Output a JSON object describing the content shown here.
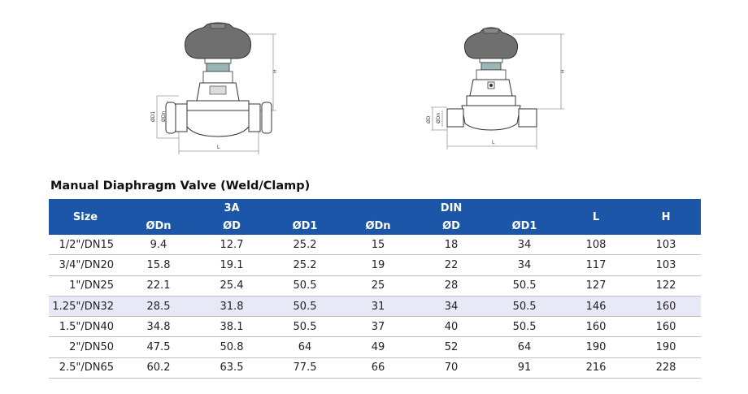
{
  "drawings": {
    "left": {
      "dims": {
        "height": "H",
        "length": "L",
        "d1": "ØD1",
        "dn": "ØDn"
      }
    },
    "right": {
      "dims": {
        "height": "H",
        "length": "L",
        "d": "ØD",
        "dn": "ØDn"
      }
    }
  },
  "title": "Manual Diaphragm Valve  (Weld/Clamp)",
  "table": {
    "size_header": "Size",
    "group_3a": "3A",
    "group_din": "DIN",
    "l_header": "L",
    "h_header": "H",
    "sub_headers": [
      "ØDn",
      "ØD",
      "ØD1",
      "ØDn",
      "ØD",
      "ØD1"
    ],
    "rows": [
      [
        "1/2\"/DN15",
        "9.4",
        "12.7",
        "25.2",
        "15",
        "18",
        "34",
        "108",
        "103"
      ],
      [
        "3/4\"/DN20",
        "15.8",
        "19.1",
        "25.2",
        "19",
        "22",
        "34",
        "117",
        "103"
      ],
      [
        "1\"/DN25",
        "22.1",
        "25.4",
        "50.5",
        "25",
        "28",
        "50.5",
        "127",
        "122"
      ],
      [
        "1.25\"/DN32",
        "28.5",
        "31.8",
        "50.5",
        "31",
        "34",
        "50.5",
        "146",
        "160"
      ],
      [
        "1.5\"/DN40",
        "34.8",
        "38.1",
        "50.5",
        "37",
        "40",
        "50.5",
        "160",
        "160"
      ],
      [
        "2\"/DN50",
        "47.5",
        "50.8",
        "64",
        "49",
        "52",
        "64",
        "190",
        "190"
      ],
      [
        "2.5\"/DN65",
        "60.2",
        "63.5",
        "77.5",
        "66",
        "70",
        "91",
        "216",
        "228"
      ]
    ]
  },
  "colors": {
    "header_bg": "#1b56a8",
    "header_text": "#ffffff",
    "highlight_row": "#e8e8f6",
    "rule": "#bfbfbf"
  }
}
